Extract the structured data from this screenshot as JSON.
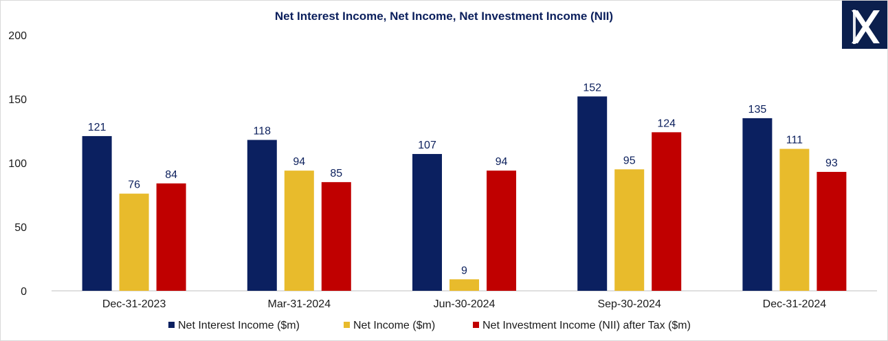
{
  "chart_data": {
    "type": "bar",
    "title": "Net Interest Income, Net Income, Net Investment Income (NII)",
    "xlabel": "",
    "ylabel": "",
    "categories": [
      "Dec-31-2023",
      "Mar-31-2024",
      "Jun-30-2024",
      "Sep-30-2024",
      "Dec-31-2024"
    ],
    "series": [
      {
        "name": "Net Interest Income ($m)",
        "color": "#0b2060",
        "values": [
          121,
          118,
          107,
          152,
          135
        ]
      },
      {
        "name": "Net Income ($m)",
        "color": "#e8bb2c",
        "values": [
          76,
          94,
          9,
          95,
          111
        ]
      },
      {
        "name": "Net Investment Income (NII)  after Tax  ($m)",
        "color": "#c00000",
        "values": [
          84,
          85,
          94,
          124,
          93
        ]
      }
    ],
    "ylim": [
      0,
      200
    ],
    "yticks": [
      0,
      50,
      100,
      150,
      200
    ],
    "grid": false,
    "legend": "bottom",
    "data_labels": true
  },
  "logo": {
    "icon": "x-logo-icon",
    "background": "#0b1f4d",
    "color": "#ffffff"
  }
}
